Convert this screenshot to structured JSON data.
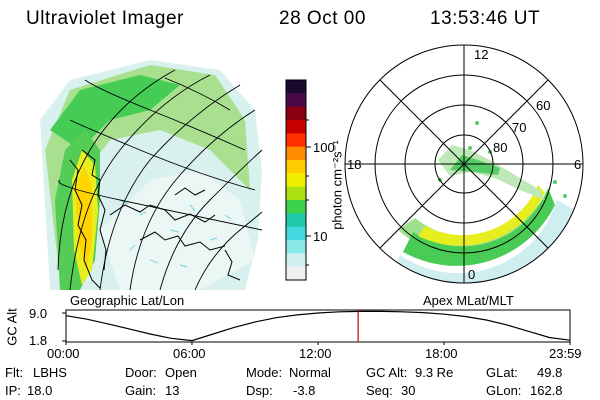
{
  "header": {
    "title": "Ultraviolet Imager",
    "date": "28 Oct 00",
    "time": "13:53:46 UT"
  },
  "colorbar": {
    "unit_label": "photon cm⁻²s⁻¹",
    "ticks": [
      "100",
      "10"
    ],
    "colors": [
      "#1a0a2e",
      "#4a0a4a",
      "#8a0010",
      "#c80000",
      "#ff3000",
      "#ff8c00",
      "#ffcc00",
      "#eef000",
      "#a8e010",
      "#3cd24b",
      "#1fc8a8",
      "#45d8e0",
      "#8ae8e8",
      "#cfeef0",
      "#f0f0f0"
    ]
  },
  "left_panel": {
    "caption": "Geographic Lat/Lon"
  },
  "right_panel": {
    "caption": "Apex MLat/MLT",
    "mlt_labels": {
      "top": "12",
      "left": "18",
      "right": "6",
      "bottom": "0"
    },
    "lat_labels": [
      "60",
      "70",
      "80"
    ]
  },
  "gc_plot": {
    "ylabel": "GC Alt",
    "y_ticks": [
      "9.0",
      "1.8"
    ],
    "x_ticks": [
      "00:00",
      "06:00",
      "12:00",
      "18:00",
      "23:59"
    ],
    "marker_color": "#cc0000",
    "curve_color": "#000000",
    "chart_data": {
      "type": "line",
      "xlabel": "",
      "ylabel": "GC Alt",
      "x_hours": [
        0,
        1,
        2,
        3,
        4,
        5,
        6,
        7,
        8,
        9,
        10,
        11,
        12,
        13,
        14,
        15,
        16,
        17,
        18,
        19,
        20,
        21,
        22,
        23,
        23.98
      ],
      "values": [
        8.3,
        7.4,
        6.2,
        4.9,
        3.6,
        2.5,
        1.9,
        3.6,
        5.3,
        6.7,
        7.8,
        8.5,
        9.0,
        9.3,
        9.4,
        9.4,
        9.3,
        9.1,
        8.7,
        8.1,
        7.2,
        5.9,
        4.3,
        2.7,
        2.0
      ],
      "marker_hour": 13.9,
      "ylim": [
        1.8,
        9.4
      ],
      "xlim": [
        0,
        23.98
      ]
    }
  },
  "status": {
    "row1": [
      {
        "label": "Flt:",
        "value": "LBHS"
      },
      {
        "label": "Door:",
        "value": "Open"
      },
      {
        "label": "Mode:",
        "value": "Normal"
      },
      {
        "label": "GC Alt:",
        "value": "9.3 Re"
      },
      {
        "label": "GLat:",
        "value": "49.8"
      }
    ],
    "row2": [
      {
        "label": "IP:",
        "value": "18.0"
      },
      {
        "label": "Gain:",
        "value": "13"
      },
      {
        "label": "Dsp:",
        "value": "-3.8"
      },
      {
        "label": "Seq:",
        "value": "30"
      },
      {
        "label": "GLon:",
        "value": "162.8"
      }
    ]
  }
}
